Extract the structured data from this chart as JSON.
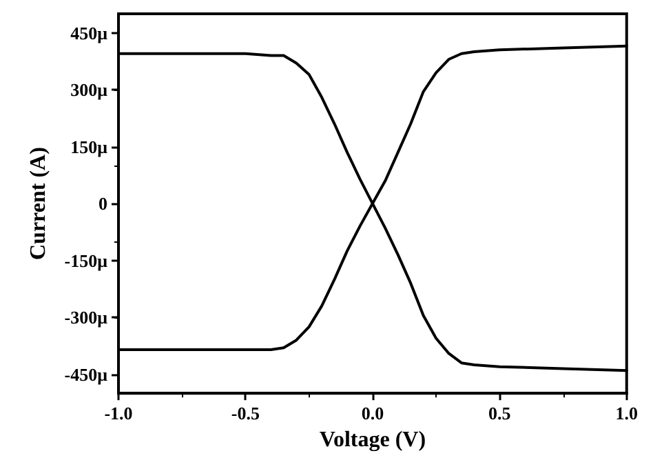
{
  "chart_data": {
    "type": "line",
    "xlabel": "Voltage (V)",
    "ylabel": "Current (A)",
    "xlim": [
      -1,
      1
    ],
    "ylim": [
      -500,
      500
    ],
    "xticks": [
      {
        "value": -1,
        "label": "-1.0"
      },
      {
        "value": -0.5,
        "label": "-0.5"
      },
      {
        "value": 0,
        "label": "0.0"
      },
      {
        "value": 0.5,
        "label": "0.5"
      },
      {
        "value": 1,
        "label": "1.0"
      }
    ],
    "yticks": [
      {
        "value": -450,
        "label": "-450μ"
      },
      {
        "value": -300,
        "label": "-300μ"
      },
      {
        "value": -150,
        "label": "-150μ"
      },
      0,
      {
        "value": 150,
        "label": "150μ"
      },
      {
        "value": 300,
        "label": "300μ"
      },
      {
        "value": 450,
        "label": "450μ"
      }
    ],
    "x": [
      -1,
      -0.75,
      -0.5,
      -0.4,
      -0.35,
      -0.3,
      -0.25,
      -0.2,
      -0.15,
      -0.1,
      -0.05,
      0,
      0.05,
      0.1,
      0.15,
      0.2,
      0.25,
      0.3,
      0.35,
      0.4,
      0.5,
      0.75,
      1
    ],
    "series": [
      {
        "color": "#000000",
        "values": [
          395,
          395,
          395,
          390,
          390,
          370,
          340,
          280,
          210,
          135,
          65,
          0,
          -65,
          -135,
          -210,
          -295,
          -355,
          -395,
          -420,
          -425,
          -430,
          -435,
          -440
        ]
      },
      {
        "color": "#000000",
        "values": [
          -385,
          -385,
          -385,
          -385,
          -380,
          -360,
          -325,
          -270,
          -200,
          -125,
          -60,
          0,
          60,
          135,
          210,
          295,
          345,
          380,
          395,
          400,
          405,
          410,
          415
        ]
      }
    ],
    "grid": false,
    "marker": "none",
    "line_style": "solid"
  }
}
